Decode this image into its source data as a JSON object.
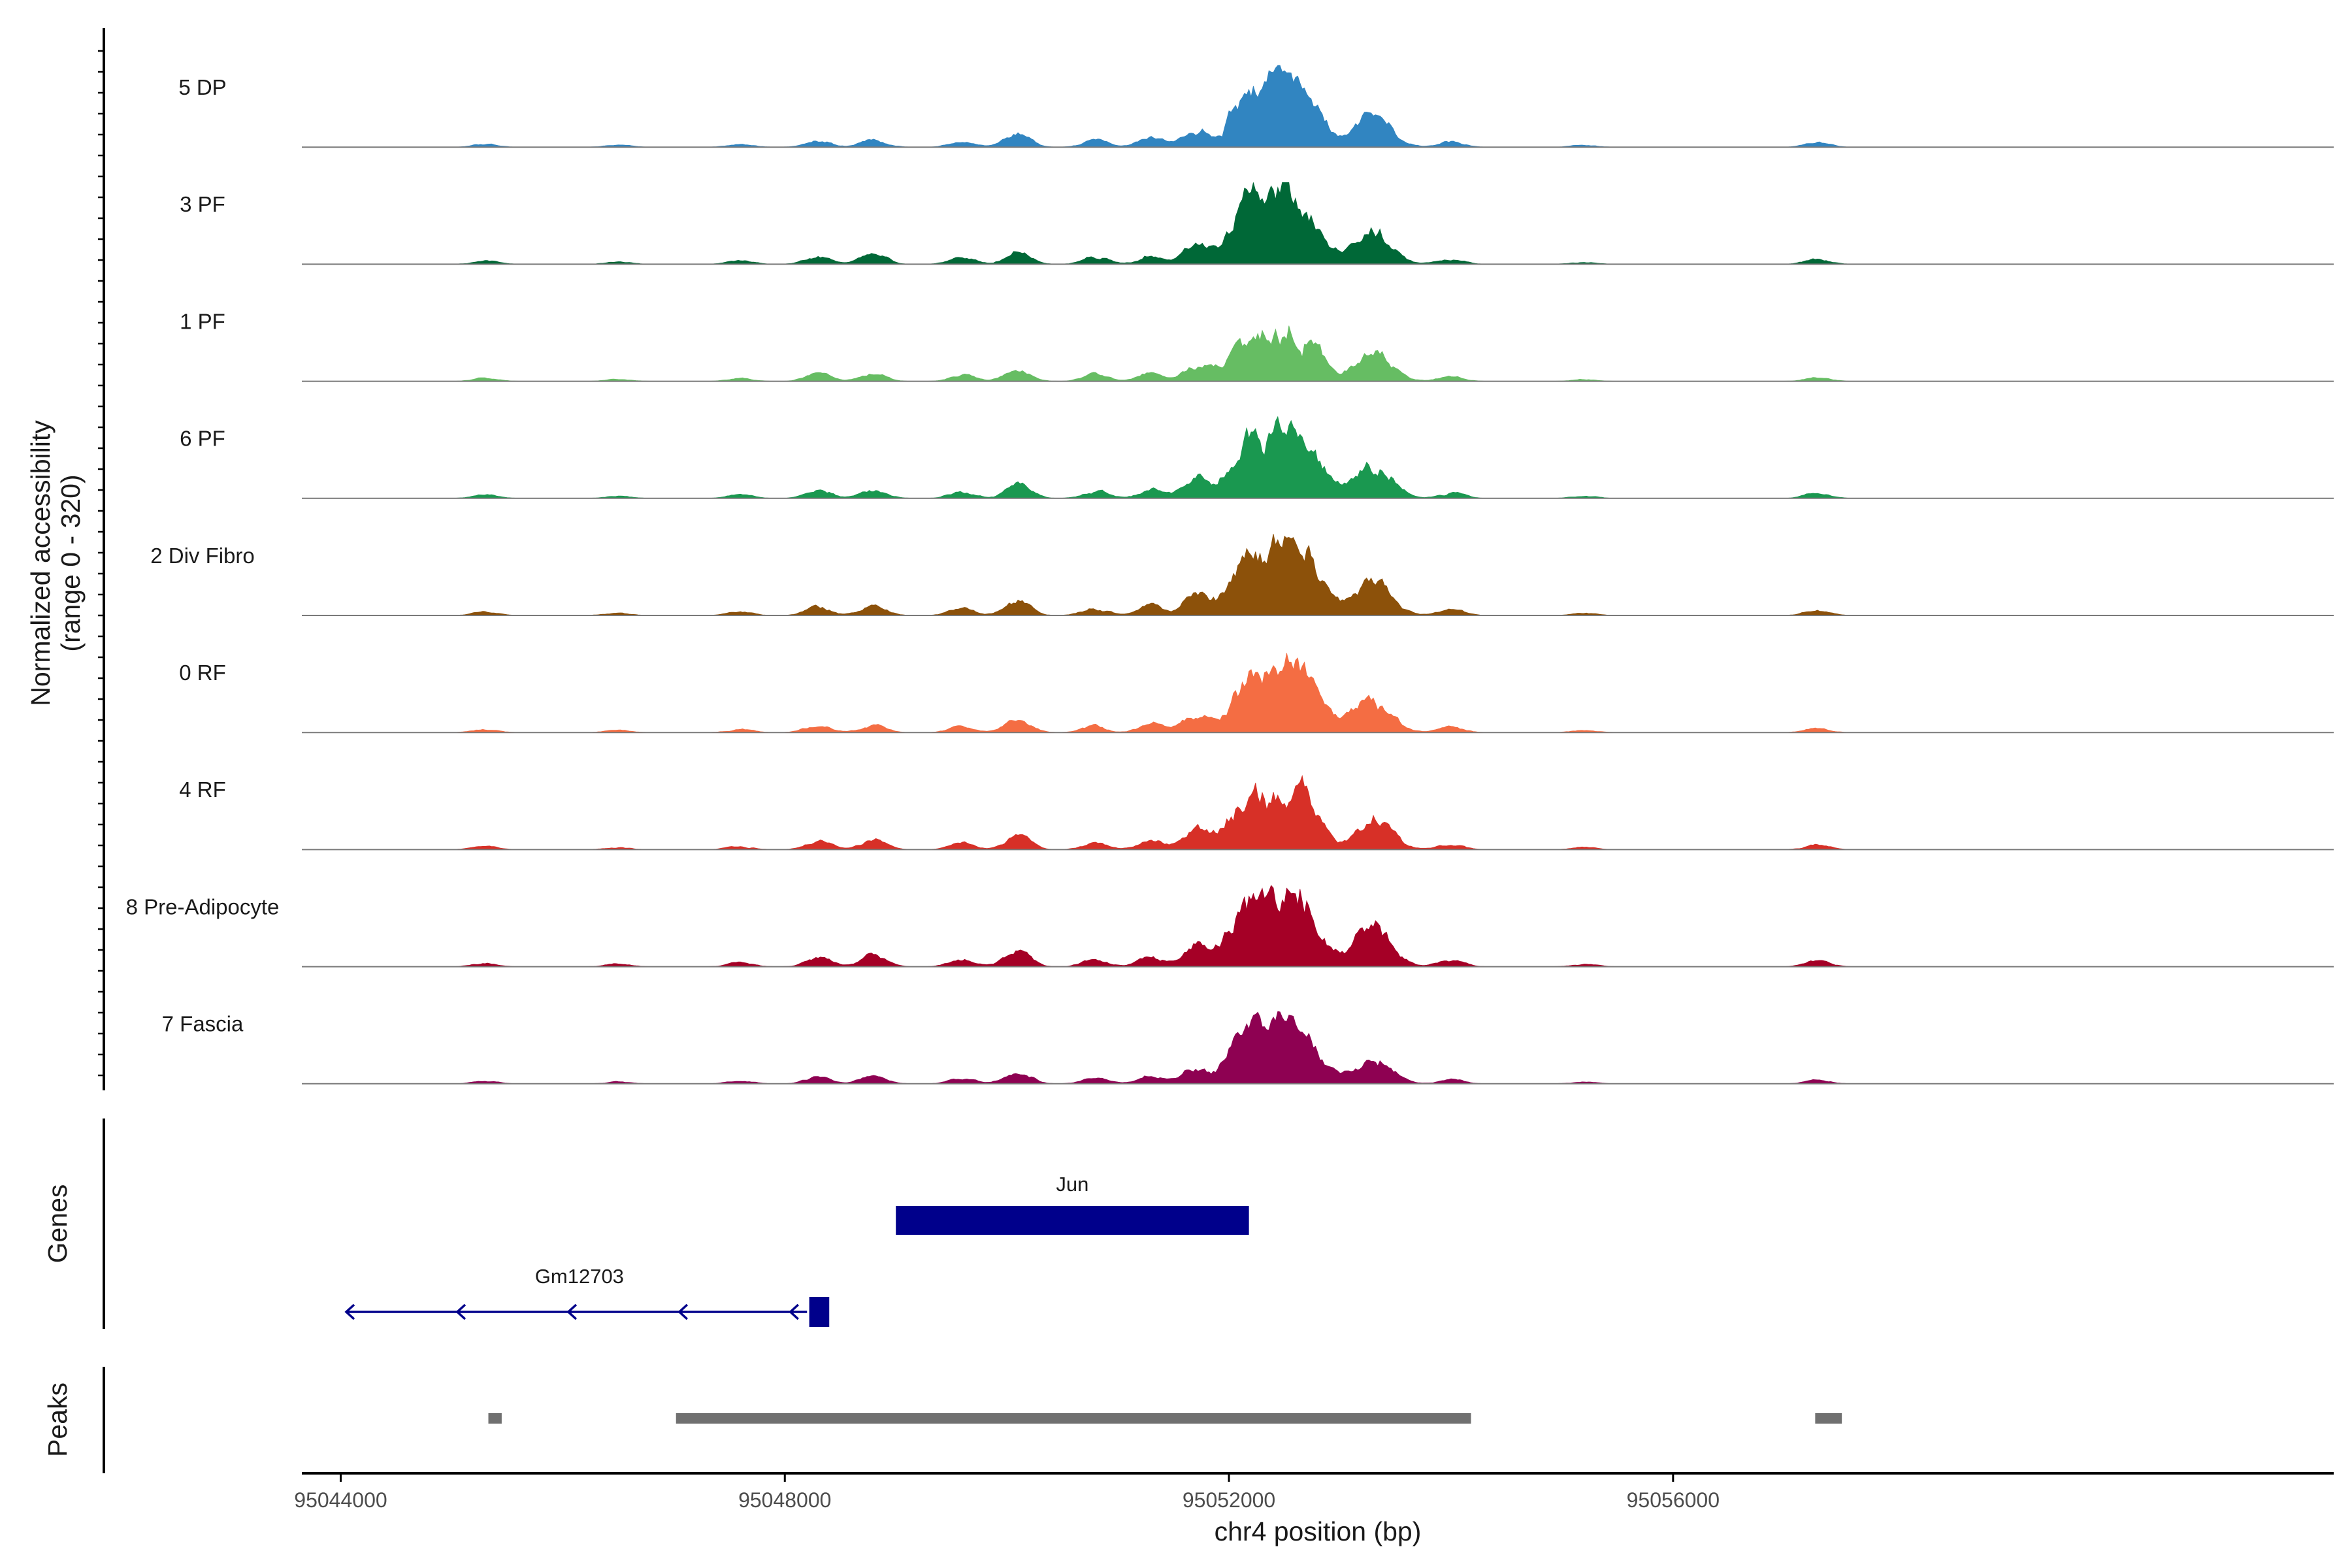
{
  "chart_data": {
    "type": "area",
    "title": "",
    "ylabel_line1": "Normalized accessibility",
    "ylabel_line2": "(range 0 - 320)",
    "yrange": [
      0,
      320
    ],
    "xlabel": "chr4 position (bp)",
    "xlim": [
      95043650,
      95061950
    ],
    "xticks": [
      95044000,
      95048000,
      95052000,
      95056000
    ],
    "xtick_labels": [
      "95044000",
      "95048000",
      "95052000",
      "95056000"
    ],
    "genes_label": "Genes",
    "peaks_label": "Peaks",
    "peak_profile": [
      [
        95045300,
        6
      ],
      [
        95046500,
        4
      ],
      [
        95047600,
        6
      ],
      [
        95048300,
        14
      ],
      [
        95048800,
        17
      ],
      [
        95049600,
        12
      ],
      [
        95050100,
        24
      ],
      [
        95050800,
        13
      ],
      [
        95051300,
        17
      ],
      [
        95051700,
        35
      ],
      [
        95052150,
        92
      ],
      [
        95052450,
        82
      ],
      [
        95052700,
        72
      ],
      [
        95053300,
        58
      ],
      [
        95054000,
        10
      ],
      [
        95055200,
        4
      ],
      [
        95057300,
        8
      ]
    ],
    "tracks": [
      {
        "name": "5 DP",
        "color": "#3185C1",
        "scale": 0.78
      },
      {
        "name": "3 PF",
        "color": "#006837",
        "scale": 0.85
      },
      {
        "name": "1 PF",
        "color": "#66BD63",
        "scale": 0.72
      },
      {
        "name": "6 PF",
        "color": "#1A9850",
        "scale": 0.9
      },
      {
        "name": "2 Div Fibro",
        "color": "#8C510A",
        "scale": 0.9
      },
      {
        "name": "0 RF",
        "color": "#F46D43",
        "scale": 0.82
      },
      {
        "name": "4 RF",
        "color": "#D73027",
        "scale": 0.85
      },
      {
        "name": "8 Pre-Adipocyte",
        "color": "#A50026",
        "scale": 0.98
      },
      {
        "name": "7 Fascia",
        "color": "#8E0152",
        "scale": 0.7
      }
    ],
    "genes": [
      {
        "name": "Jun",
        "start": 95049000,
        "end": 95052180,
        "strand": "+",
        "color": "#00008B"
      },
      {
        "name": "Gm12703",
        "start": 95044050,
        "end": 95048400,
        "strand": "-",
        "color": "#00008B"
      }
    ],
    "peaks": [
      {
        "start": 95045330,
        "end": 95045450
      },
      {
        "start": 95047020,
        "end": 95054180
      },
      {
        "start": 95057280,
        "end": 95057520
      }
    ],
    "peak_color": "#707070"
  }
}
